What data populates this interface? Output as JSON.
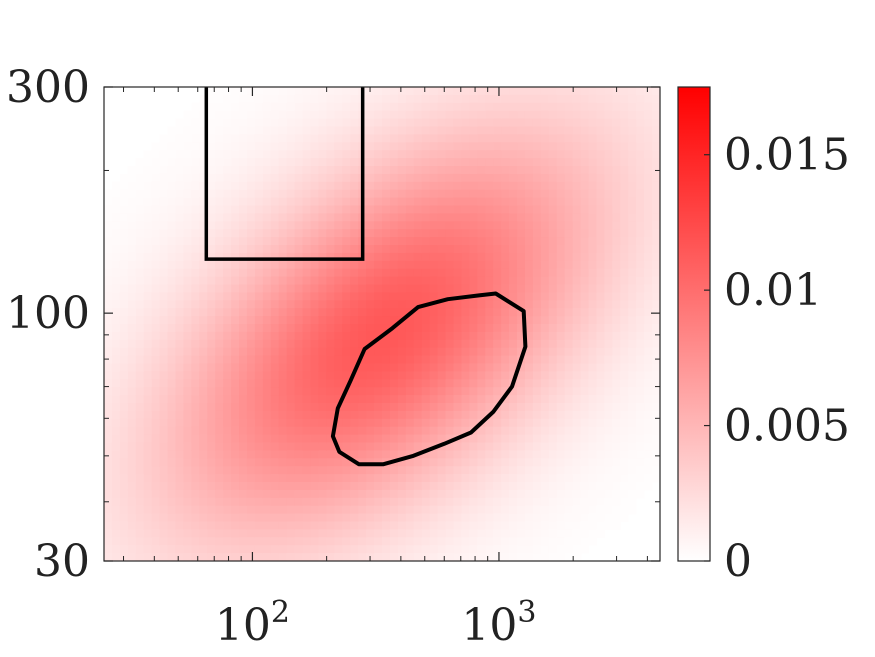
{
  "chart_data": {
    "type": "heatmap",
    "title": "",
    "xlabel": "",
    "ylabel": "",
    "x_scale": "log",
    "y_scale": "log",
    "xlim": [
      25,
      4500
    ],
    "ylim": [
      30,
      300
    ],
    "x_ticks": [
      {
        "value": 100,
        "base": "10",
        "exp": "2"
      },
      {
        "value": 1000,
        "base": "10",
        "exp": "3"
      }
    ],
    "y_ticks": [
      {
        "value": 300,
        "label": "300"
      },
      {
        "value": 100,
        "label": "100"
      },
      {
        "value": 30,
        "label": "30"
      }
    ],
    "density": {
      "peak_x": 340,
      "peak_y": 90,
      "peak_value": 0.0115,
      "spread_x_decades": 0.62,
      "spread_y_decades": 0.3,
      "correlation": 0.55
    },
    "colorbar": {
      "min": 0,
      "max": 0.0175,
      "ticks": [
        {
          "value": 0,
          "label": "0"
        },
        {
          "value": 0.005,
          "label": "0.005"
        },
        {
          "value": 0.01,
          "label": "0.01"
        },
        {
          "value": 0.015,
          "label": "0.015"
        }
      ],
      "color_low": "#ffffff",
      "color_high": "#ff0000"
    },
    "rectangle_region": {
      "x_min": 65,
      "x_max": 280,
      "y_min": 130,
      "y_max": 300
    },
    "contour_line": [
      [
        970,
        110
      ],
      [
        1260,
        101
      ],
      [
        1280,
        85
      ],
      [
        1130,
        70
      ],
      [
        950,
        62
      ],
      [
        770,
        56
      ],
      [
        600,
        53
      ],
      [
        450,
        50
      ],
      [
        340,
        48
      ],
      [
        270,
        48
      ],
      [
        225,
        51
      ],
      [
        212,
        55
      ],
      [
        222,
        63
      ],
      [
        250,
        72
      ],
      [
        285,
        84
      ],
      [
        370,
        93
      ],
      [
        470,
        103
      ],
      [
        620,
        107
      ],
      [
        830,
        109
      ],
      [
        970,
        110
      ]
    ],
    "outline_color": "#000000"
  }
}
